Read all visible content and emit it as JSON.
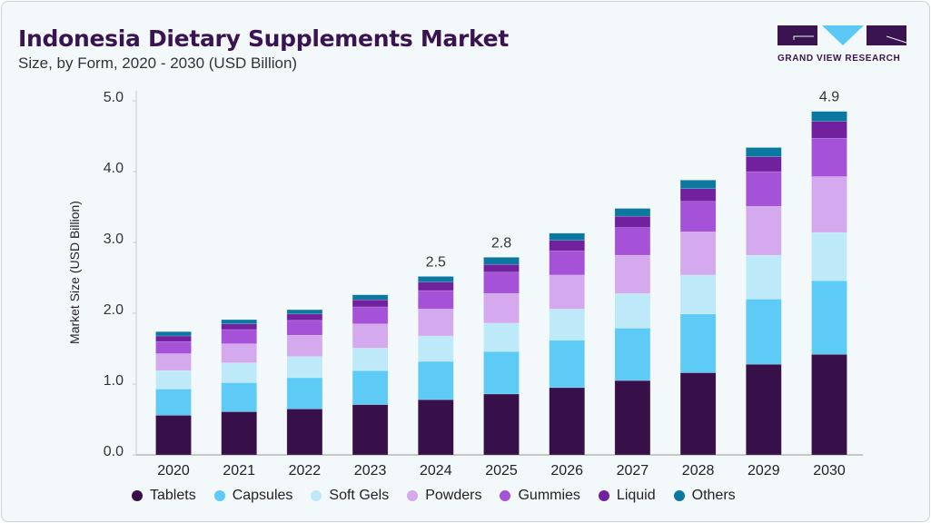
{
  "header": {
    "title": "Indonesia Dietary Supplements Market",
    "subtitle": "Size, by Form, 2020 - 2030 (USD Billion)"
  },
  "logo": {
    "text": "GRAND VIEW RESEARCH",
    "colors": {
      "dark": "#3a1450",
      "accent": "#5bc8f5"
    }
  },
  "chart_data": {
    "type": "bar",
    "stacked": true,
    "title": "Indonesia Dietary Supplements Market",
    "ylabel": "Market Size (USD Billion)",
    "xlabel": "",
    "ylim": [
      0,
      5.0
    ],
    "yticks": [
      "0.0",
      "1.0",
      "2.0",
      "3.0",
      "4.0",
      "5.0"
    ],
    "grid": false,
    "legend_position": "bottom",
    "categories": [
      "2020",
      "2021",
      "2022",
      "2023",
      "2024",
      "2025",
      "2026",
      "2027",
      "2028",
      "2029",
      "2030"
    ],
    "series": [
      {
        "name": "Tablets",
        "color": "#37104a",
        "values": [
          0.56,
          0.61,
          0.65,
          0.71,
          0.78,
          0.86,
          0.95,
          1.05,
          1.16,
          1.28,
          1.42
        ]
      },
      {
        "name": "Capsules",
        "color": "#5ecbf6",
        "values": [
          0.37,
          0.41,
          0.44,
          0.48,
          0.54,
          0.6,
          0.67,
          0.74,
          0.83,
          0.92,
          1.04
        ]
      },
      {
        "name": "Soft Gels",
        "color": "#bde9f9",
        "values": [
          0.26,
          0.28,
          0.3,
          0.32,
          0.36,
          0.4,
          0.44,
          0.49,
          0.55,
          0.62,
          0.68
        ]
      },
      {
        "name": "Powders",
        "color": "#d4a9ed",
        "values": [
          0.24,
          0.27,
          0.3,
          0.34,
          0.38,
          0.42,
          0.48,
          0.54,
          0.61,
          0.69,
          0.79
        ]
      },
      {
        "name": "Gummies",
        "color": "#a551d8",
        "values": [
          0.17,
          0.2,
          0.21,
          0.24,
          0.26,
          0.3,
          0.34,
          0.39,
          0.43,
          0.49,
          0.54
        ]
      },
      {
        "name": "Liquid",
        "color": "#72219e",
        "values": [
          0.08,
          0.08,
          0.09,
          0.1,
          0.12,
          0.11,
          0.15,
          0.16,
          0.18,
          0.21,
          0.24
        ]
      },
      {
        "name": "Others",
        "color": "#0a789f",
        "values": [
          0.06,
          0.06,
          0.06,
          0.07,
          0.08,
          0.1,
          0.1,
          0.11,
          0.12,
          0.13,
          0.14
        ]
      }
    ],
    "annotations": [
      {
        "category": "2024",
        "text": "2.5"
      },
      {
        "category": "2025",
        "text": "2.8"
      },
      {
        "category": "2030",
        "text": "4.9"
      }
    ]
  }
}
